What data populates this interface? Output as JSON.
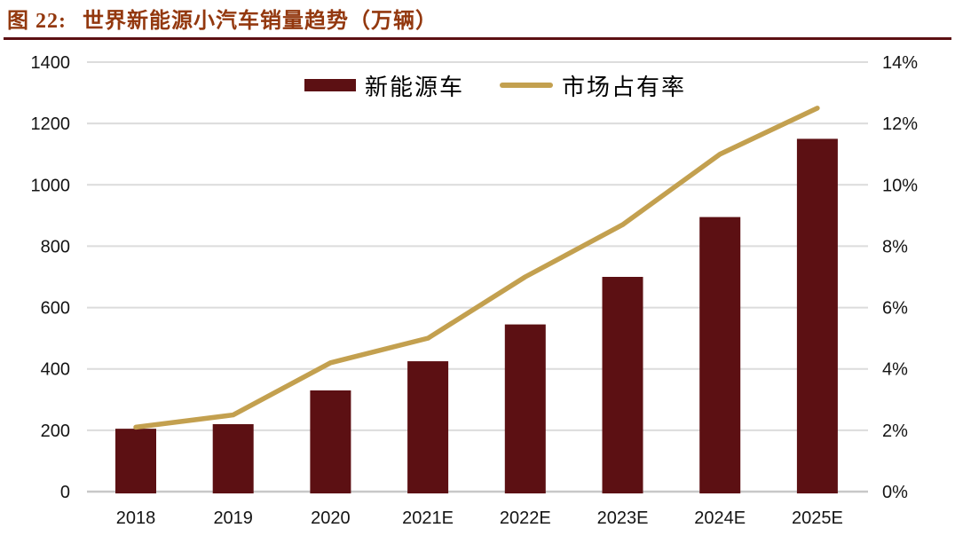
{
  "figure": {
    "label": "图 22:",
    "title": "世界新能源小汽车销量趋势（万辆）"
  },
  "colors": {
    "title": "#93380E",
    "rule": "#5C1013",
    "bar": "#5C1013",
    "line": "#C3A04F",
    "gridline": "#DCDCDC",
    "axis_line": "#C8C8C8",
    "tick_text": "#141414"
  },
  "chart_data": {
    "type": "bar+line combo",
    "title": "世界新能源小汽车销量趋势（万辆）",
    "categories": [
      "2018",
      "2019",
      "2020",
      "2021E",
      "2022E",
      "2023E",
      "2024E",
      "2025E"
    ],
    "series": [
      {
        "name": "新能源车",
        "type": "bar",
        "axis": "left",
        "color": "#5C1013",
        "values": [
          205,
          220,
          330,
          425,
          545,
          700,
          895,
          1150
        ]
      },
      {
        "name": "市场占有率",
        "type": "line",
        "axis": "right",
        "color": "#C3A04F",
        "values_pct": [
          2.1,
          2.5,
          4.2,
          5.0,
          7.0,
          8.7,
          11.0,
          12.5
        ]
      }
    ],
    "left_axis": {
      "min": 0,
      "max": 1400,
      "step": 200,
      "ticks": [
        0,
        200,
        400,
        600,
        800,
        1000,
        1200,
        1400
      ]
    },
    "right_axis": {
      "min": 0,
      "max": 14,
      "step": 2,
      "ticks": [
        "0%",
        "2%",
        "4%",
        "6%",
        "8%",
        "10%",
        "12%",
        "14%"
      ]
    },
    "grid": true,
    "legend_position": "top-center"
  }
}
